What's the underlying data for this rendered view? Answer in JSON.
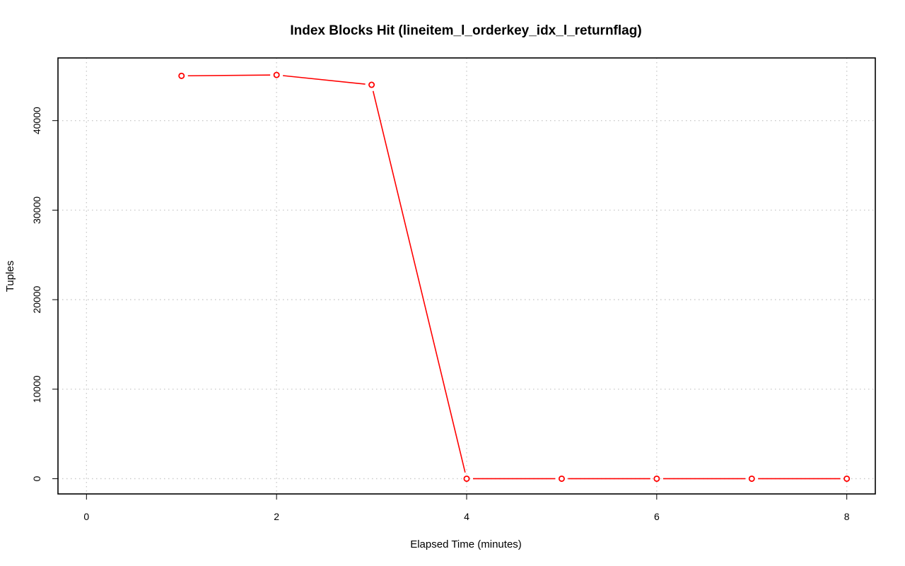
{
  "chart_data": {
    "type": "line",
    "title": "Index Blocks Hit (lineitem_l_orderkey_idx_l_returnflag)",
    "xlabel": "Elapsed Time (minutes)",
    "ylabel": "Tuples",
    "xlim": [
      -0.3,
      8.3
    ],
    "ylim": [
      -1700,
      47000
    ],
    "x_ticks": [
      0,
      2,
      4,
      6,
      8
    ],
    "y_ticks": [
      0,
      10000,
      20000,
      30000,
      40000
    ],
    "grid": true,
    "series": [
      {
        "color": "#ff0000",
        "marker": "open-circle",
        "x": [
          1,
          2,
          3,
          4,
          5,
          6,
          7,
          8
        ],
        "values": [
          45000,
          45100,
          44000,
          0,
          0,
          0,
          0,
          0
        ]
      }
    ]
  }
}
